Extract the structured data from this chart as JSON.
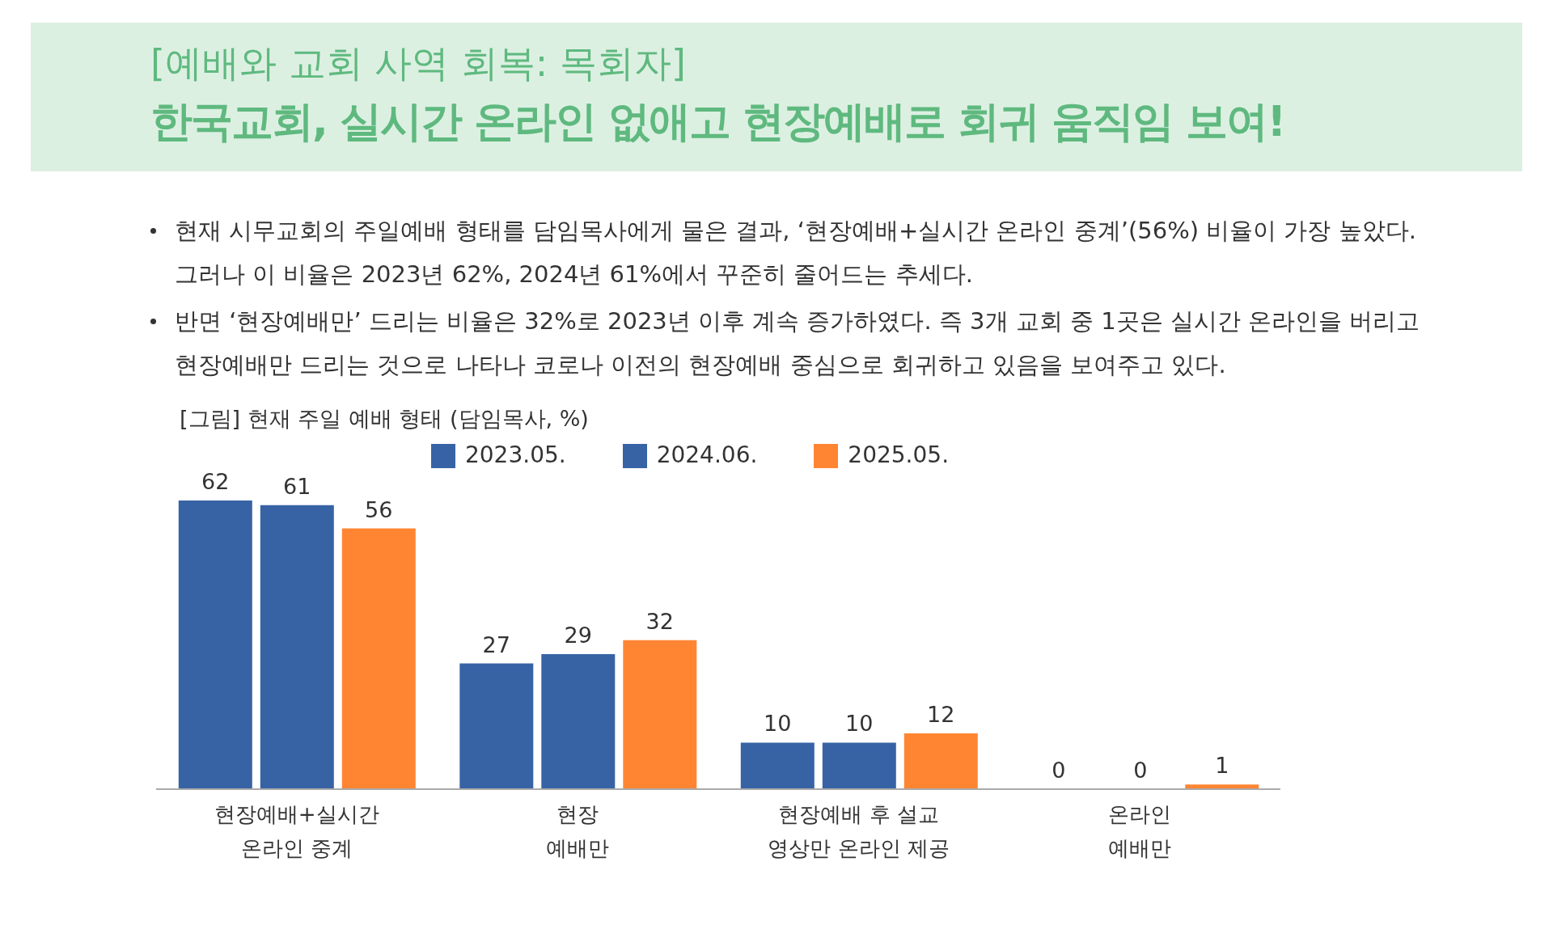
{
  "chart_data": {
    "type": "bar",
    "subtitle": "[예배와 교회 사역 회복: 목회자]",
    "title": "한국교회, 실시간 온라인 없애고 현장예배로 회귀 움직임 보여!",
    "annotations": [
      "현재 시무교회의 주일예배 형태를 담임목사에게 물은 결과, ‘현장예배+실시간 온라인 중계’(56%) 비율이 가장 높았다. 그러나 이 비율은 2023년 62%, 2024년 61%에서 꾸준히 줄어드는 추세다.",
      "반면 ‘현장예배만’ 드리는 비율은 32%로 2023년 이후 계속 증가하였다. 즉 3개 교회 중 1곳은 실시간 온라인을 버리고 현장예배만 드리는 것으로 나타나 코로나 이전의 현장예배 중심으로 회귀하고 있음을 보여주고 있다.",
      "[그림] 현재 주일 예배 형태 (담임목사, %)"
    ],
    "categories": [
      "현장예배+실시간\n온라인 중계",
      "현장\n예배만",
      "현장예배 후 설교\n영상만 온라인 제공",
      "온라인\n예배만"
    ],
    "series": [
      {
        "name": "2023.05.",
        "color": "#3763a5",
        "values": [
          62,
          27,
          10,
          0
        ]
      },
      {
        "name": "2024.06.",
        "color": "#3763a5",
        "values": [
          61,
          29,
          10,
          0
        ]
      },
      {
        "name": "2025.05.",
        "color": "#ff8533",
        "values": [
          56,
          32,
          12,
          1
        ]
      }
    ],
    "data_labels": true,
    "legend": "top",
    "grid": false
  }
}
